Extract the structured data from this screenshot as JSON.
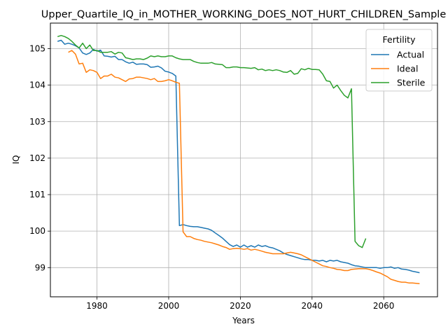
{
  "chart_data": {
    "type": "line",
    "title": "Upper_Quartile_IQ_in_MOTHER_WORKING_DOES_NOT_HURT_CHILDREN_Sample",
    "xlabel": "Years",
    "ylabel": "IQ",
    "xlim": [
      1967,
      2075
    ],
    "ylim": [
      98.2,
      105.7
    ],
    "xticks": [
      1980,
      2000,
      2020,
      2040,
      2060
    ],
    "yticks": [
      99,
      100,
      101,
      102,
      103,
      104,
      105
    ],
    "grid": true,
    "legend": {
      "title": "Fertility",
      "position": "top-right"
    },
    "series": [
      {
        "name": "Actual",
        "color": "#1f77b4",
        "x": [
          1969,
          1970,
          1971,
          1972,
          1973,
          1974,
          1975,
          1976,
          1977,
          1978,
          1979,
          1980,
          1981,
          1982,
          1983,
          1984,
          1985,
          1986,
          1987,
          1988,
          1989,
          1990,
          1991,
          1992,
          1993,
          1994,
          1995,
          1996,
          1997,
          1998,
          1999,
          2000,
          2001,
          2002,
          2003,
          2004,
          2005,
          2006,
          2007,
          2008,
          2009,
          2010,
          2011,
          2012,
          2013,
          2014,
          2015,
          2016,
          2017,
          2018,
          2019,
          2020,
          2021,
          2022,
          2023,
          2024,
          2025,
          2026,
          2027,
          2028,
          2029,
          2030,
          2031,
          2032,
          2033,
          2034,
          2035,
          2036,
          2037,
          2038,
          2039,
          2040,
          2041,
          2042,
          2043,
          2044,
          2045,
          2046,
          2047,
          2048,
          2049,
          2050,
          2051,
          2052,
          2053,
          2054,
          2055,
          2056,
          2057,
          2058,
          2059,
          2060,
          2061,
          2062,
          2063,
          2064,
          2065,
          2066,
          2067,
          2068,
          2069,
          2070
        ],
        "y": [
          105.2,
          105.23,
          105.12,
          105.15,
          105.12,
          105.08,
          105.02,
          104.88,
          104.84,
          104.88,
          104.98,
          104.93,
          104.96,
          104.8,
          104.79,
          104.77,
          104.79,
          104.7,
          104.7,
          104.64,
          104.6,
          104.63,
          104.57,
          104.58,
          104.58,
          104.56,
          104.49,
          104.5,
          104.52,
          104.47,
          104.38,
          104.36,
          104.32,
          104.25,
          100.15,
          100.18,
          100.15,
          100.13,
          100.12,
          100.12,
          100.1,
          100.08,
          100.06,
          100.02,
          99.95,
          99.88,
          99.81,
          99.72,
          99.63,
          99.58,
          99.62,
          99.56,
          99.62,
          99.56,
          99.6,
          99.56,
          99.62,
          99.58,
          99.6,
          99.56,
          99.54,
          99.5,
          99.46,
          99.4,
          99.36,
          99.33,
          99.3,
          99.27,
          99.24,
          99.22,
          99.22,
          99.2,
          99.2,
          99.18,
          99.2,
          99.16,
          99.2,
          99.18,
          99.2,
          99.16,
          99.14,
          99.12,
          99.08,
          99.05,
          99.04,
          99.02,
          99.0,
          99.0,
          99.0,
          99.0,
          98.98,
          99.0,
          99.0,
          99.02,
          98.98,
          99.0,
          98.96,
          98.95,
          98.93,
          98.9,
          98.88,
          98.86
        ]
      },
      {
        "name": "Ideal",
        "color": "#ff7f0e",
        "x": [
          1972,
          1973,
          1974,
          1975,
          1976,
          1977,
          1978,
          1979,
          1980,
          1981,
          1982,
          1983,
          1984,
          1985,
          1986,
          1987,
          1988,
          1989,
          1990,
          1991,
          1992,
          1993,
          1994,
          1995,
          1996,
          1997,
          1998,
          1999,
          2000,
          2001,
          2002,
          2003,
          2004,
          2005,
          2006,
          2007,
          2008,
          2009,
          2010,
          2011,
          2012,
          2013,
          2014,
          2015,
          2016,
          2017,
          2018,
          2019,
          2020,
          2021,
          2022,
          2023,
          2024,
          2025,
          2026,
          2027,
          2028,
          2029,
          2030,
          2031,
          2032,
          2033,
          2034,
          2035,
          2036,
          2037,
          2038,
          2039,
          2040,
          2041,
          2042,
          2043,
          2044,
          2045,
          2046,
          2047,
          2048,
          2049,
          2050,
          2051,
          2052,
          2053,
          2054,
          2055,
          2056,
          2057,
          2058,
          2059,
          2060,
          2061,
          2062,
          2063,
          2064,
          2065,
          2066,
          2067,
          2068,
          2069,
          2070
        ],
        "y": [
          104.9,
          104.95,
          104.85,
          104.58,
          104.6,
          104.35,
          104.42,
          104.4,
          104.35,
          104.18,
          104.25,
          104.25,
          104.3,
          104.22,
          104.2,
          104.15,
          104.1,
          104.17,
          104.18,
          104.22,
          104.22,
          104.2,
          104.18,
          104.15,
          104.18,
          104.1,
          104.1,
          104.12,
          104.15,
          104.12,
          104.08,
          104.05,
          99.98,
          99.85,
          99.85,
          99.8,
          99.77,
          99.75,
          99.72,
          99.7,
          99.68,
          99.65,
          99.62,
          99.58,
          99.55,
          99.5,
          99.52,
          99.53,
          99.52,
          99.5,
          99.52,
          99.48,
          99.5,
          99.48,
          99.45,
          99.42,
          99.4,
          99.38,
          99.38,
          99.38,
          99.38,
          99.4,
          99.42,
          99.4,
          99.38,
          99.35,
          99.3,
          99.25,
          99.2,
          99.15,
          99.1,
          99.05,
          99.03,
          99.0,
          98.98,
          98.95,
          98.94,
          98.92,
          98.92,
          98.95,
          98.96,
          98.97,
          98.97,
          98.97,
          98.95,
          98.92,
          98.88,
          98.85,
          98.8,
          98.75,
          98.68,
          98.65,
          98.62,
          98.6,
          98.6,
          98.58,
          98.58,
          98.57,
          98.56
        ]
      },
      {
        "name": "Sterile",
        "color": "#2ca02c",
        "x": [
          1969,
          1970,
          1971,
          1972,
          1973,
          1974,
          1975,
          1976,
          1977,
          1978,
          1979,
          1980,
          1981,
          1982,
          1983,
          1984,
          1985,
          1986,
          1987,
          1988,
          1989,
          1990,
          1991,
          1992,
          1993,
          1994,
          1995,
          1996,
          1997,
          1998,
          1999,
          2000,
          2001,
          2002,
          2003,
          2004,
          2005,
          2006,
          2007,
          2008,
          2009,
          2010,
          2011,
          2012,
          2013,
          2014,
          2015,
          2016,
          2017,
          2018,
          2019,
          2020,
          2021,
          2022,
          2023,
          2024,
          2025,
          2026,
          2027,
          2028,
          2029,
          2030,
          2031,
          2032,
          2033,
          2034,
          2035,
          2036,
          2037,
          2038,
          2039,
          2040,
          2041,
          2042,
          2043,
          2044,
          2045,
          2046,
          2047,
          2048,
          2049,
          2050,
          2051,
          2052,
          2053,
          2054,
          2055
        ],
        "y": [
          105.33,
          105.36,
          105.33,
          105.28,
          105.2,
          105.1,
          105.02,
          105.15,
          105.0,
          105.1,
          104.95,
          104.95,
          104.9,
          104.9,
          104.9,
          104.92,
          104.85,
          104.9,
          104.88,
          104.75,
          104.73,
          104.7,
          104.72,
          104.72,
          104.7,
          104.74,
          104.8,
          104.78,
          104.8,
          104.78,
          104.78,
          104.8,
          104.8,
          104.75,
          104.72,
          104.7,
          104.7,
          104.7,
          104.65,
          104.62,
          104.6,
          104.6,
          104.6,
          104.62,
          104.58,
          104.57,
          104.56,
          104.48,
          104.48,
          104.5,
          104.5,
          104.48,
          104.48,
          104.47,
          104.46,
          104.48,
          104.42,
          104.44,
          104.4,
          104.42,
          104.4,
          104.42,
          104.4,
          104.36,
          104.35,
          104.4,
          104.3,
          104.32,
          104.45,
          104.42,
          104.46,
          104.43,
          104.43,
          104.42,
          104.3,
          104.12,
          104.1,
          103.92,
          104.0,
          103.85,
          103.72,
          103.65,
          103.9,
          99.72,
          99.6,
          99.55,
          99.8
        ]
      }
    ]
  }
}
